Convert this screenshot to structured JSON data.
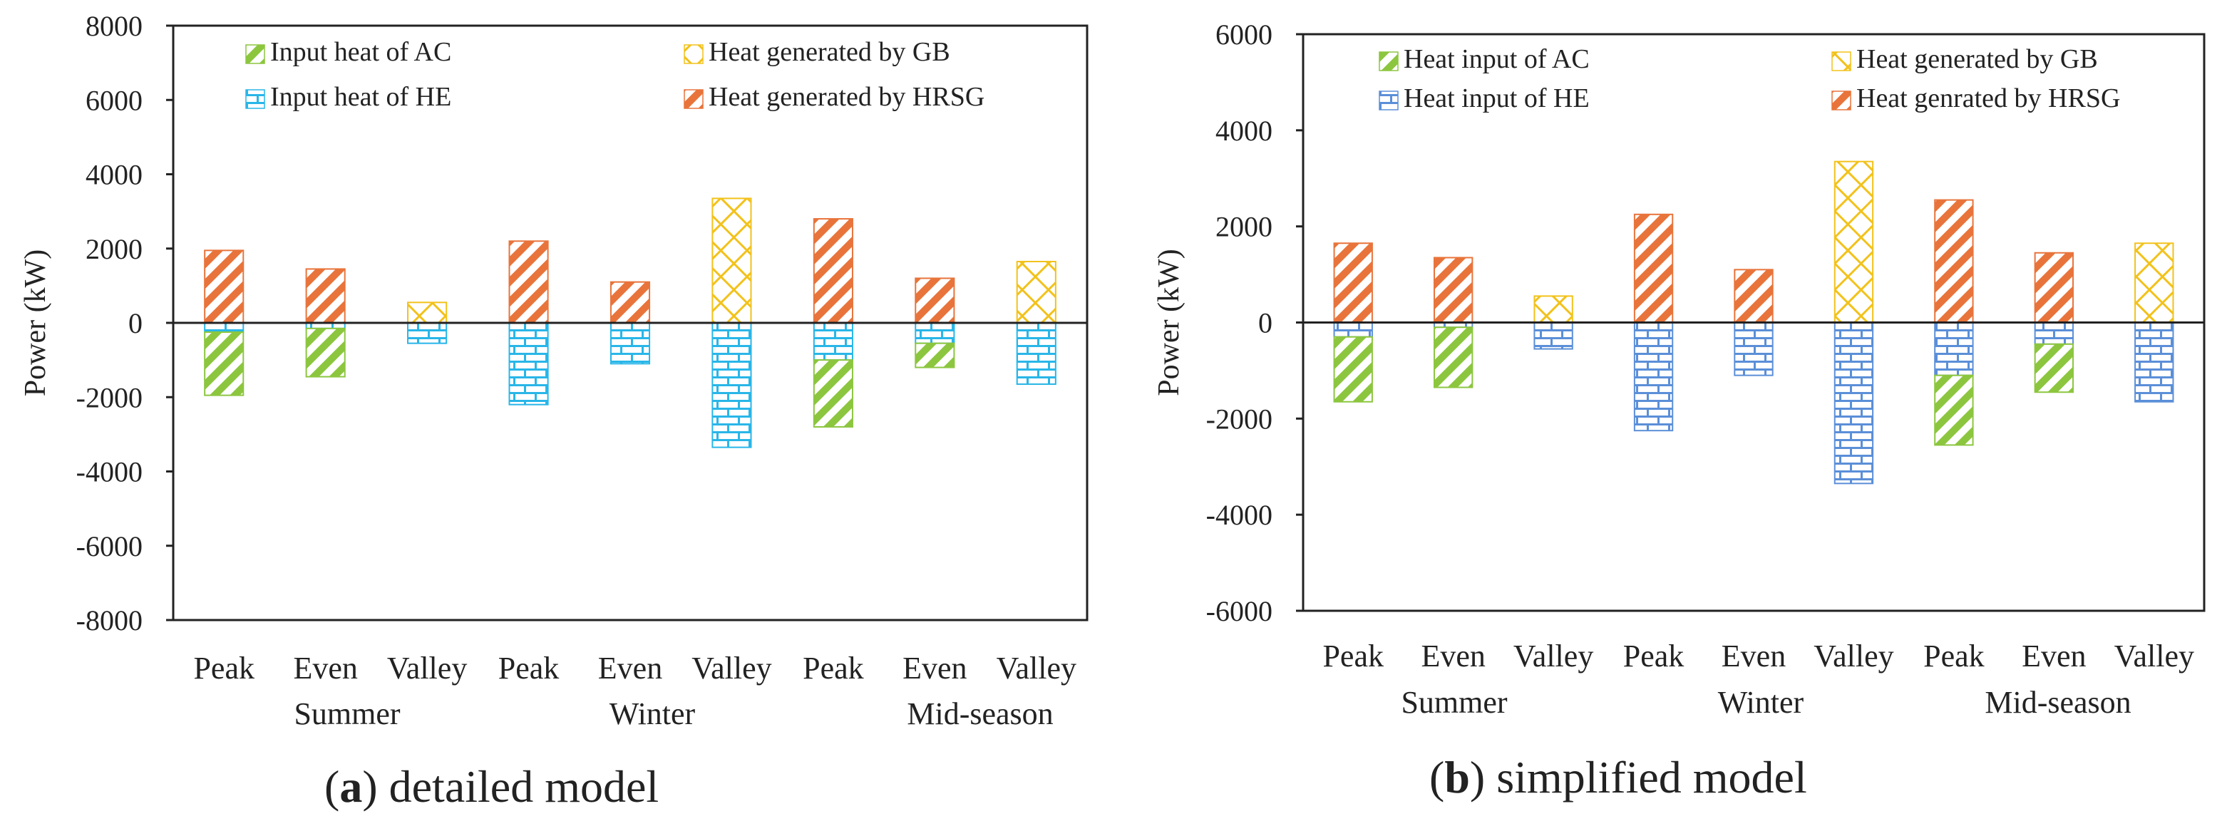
{
  "colors": {
    "ac": "#8CC63F",
    "he_a": "#29B6E8",
    "he_b": "#5B8FD8",
    "gb": "#F2C21B",
    "hrsg": "#E8743B",
    "axis": "#222222"
  },
  "chart_data": [
    {
      "type": "bar",
      "stacked": true,
      "caption_letter": "a",
      "caption_text": "detailed model",
      "ylabel": "Power (kW)",
      "ylim": [
        -8000,
        8000
      ],
      "yticks": [
        "8000",
        "6000",
        "4000",
        "2000",
        "0",
        "-2000",
        "-4000",
        "-6000",
        "-8000"
      ],
      "categories": [
        "Peak",
        "Even",
        "Valley",
        "Peak",
        "Even",
        "Valley",
        "Peak",
        "Even",
        "Valley"
      ],
      "groups": [
        "Summer",
        "Winter",
        "Mid-season"
      ],
      "series": [
        {
          "key": "ac",
          "name": "Input heat of AC",
          "values": [
            -1700,
            -1300,
            0,
            0,
            0,
            0,
            -1800,
            -650,
            0
          ]
        },
        {
          "key": "he",
          "name": "Input heat of HE",
          "values": [
            -250,
            -150,
            -550,
            -2200,
            -1100,
            -3350,
            -1000,
            -550,
            -1650
          ]
        },
        {
          "key": "gb",
          "name": "Heat generated by GB",
          "values": [
            0,
            0,
            550,
            0,
            0,
            3350,
            0,
            0,
            1650
          ]
        },
        {
          "key": "hrsg",
          "name": "Heat generated by HRSG",
          "values": [
            1950,
            1450,
            0,
            2200,
            1100,
            0,
            2800,
            1200,
            0
          ]
        }
      ]
    },
    {
      "type": "bar",
      "stacked": true,
      "caption_letter": "b",
      "caption_text": "simplified model",
      "ylabel": "Power (kW)",
      "ylim": [
        -6000,
        6000
      ],
      "yticks": [
        "6000",
        "4000",
        "2000",
        "0",
        "-2000",
        "-4000",
        "-6000"
      ],
      "categories": [
        "Peak",
        "Even",
        "Valley",
        "Peak",
        "Even",
        "Valley",
        "Peak",
        "Even",
        "Valley"
      ],
      "groups": [
        "Summer",
        "Winter",
        "Mid-season"
      ],
      "series": [
        {
          "key": "ac",
          "name": "Heat input of AC",
          "values": [
            -1350,
            -1250,
            0,
            0,
            0,
            0,
            -1450,
            -1000,
            0
          ]
        },
        {
          "key": "he",
          "name": "Heat input of HE",
          "values": [
            -300,
            -100,
            -550,
            -2250,
            -1100,
            -3350,
            -1100,
            -450,
            -1650
          ]
        },
        {
          "key": "gb",
          "name": "Heat generated by GB",
          "values": [
            0,
            0,
            550,
            0,
            0,
            3350,
            0,
            0,
            1650
          ]
        },
        {
          "key": "hrsg",
          "name": "Heat genrated by HRSG",
          "values": [
            1650,
            1350,
            0,
            2250,
            1100,
            0,
            2550,
            1450,
            0
          ]
        }
      ]
    }
  ]
}
